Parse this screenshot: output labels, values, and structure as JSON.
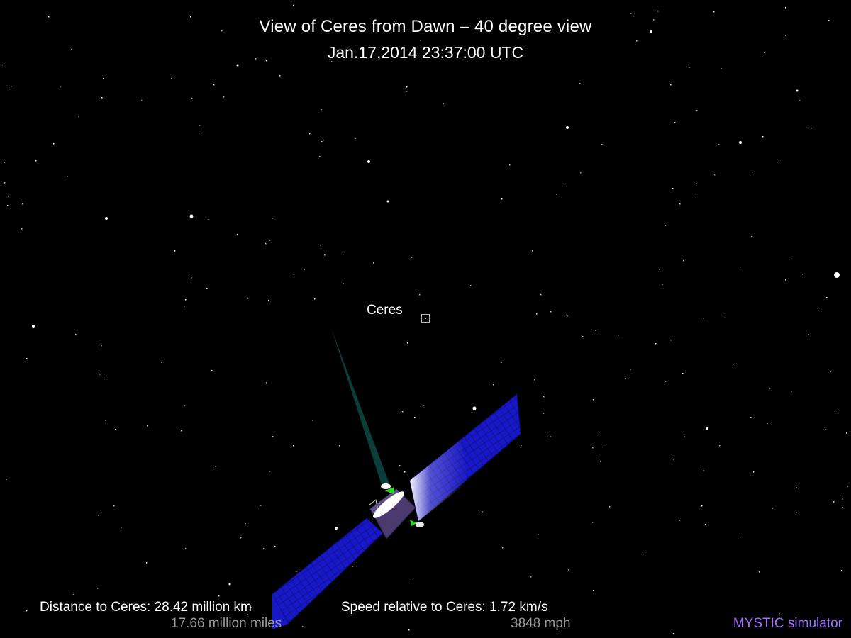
{
  "header": {
    "title": "View of Ceres from Dawn – 40 degree view",
    "timestamp": "Jan.17,2014 23:37:00  UTC"
  },
  "scene": {
    "target_label": "Ceres",
    "colors": {
      "background": "#000000",
      "solar_panel": "#1a1ac8",
      "antenna_beam": "#0b3d3a",
      "spacecraft_body": "#4a3a6e",
      "highlight_green": "#22dd22"
    },
    "icons": [
      "star-field",
      "target-marker-icon",
      "dawn-spacecraft-icon"
    ]
  },
  "readouts": {
    "distance_km": "Distance to Ceres: 28.42 million km",
    "distance_miles": "17.66 million miles",
    "speed_kms": "Speed relative to Ceres: 1.72 km/s",
    "speed_mph": "3848 mph"
  },
  "footer": {
    "credit": "MYSTIC simulator",
    "credit_color": "#a070ff"
  }
}
